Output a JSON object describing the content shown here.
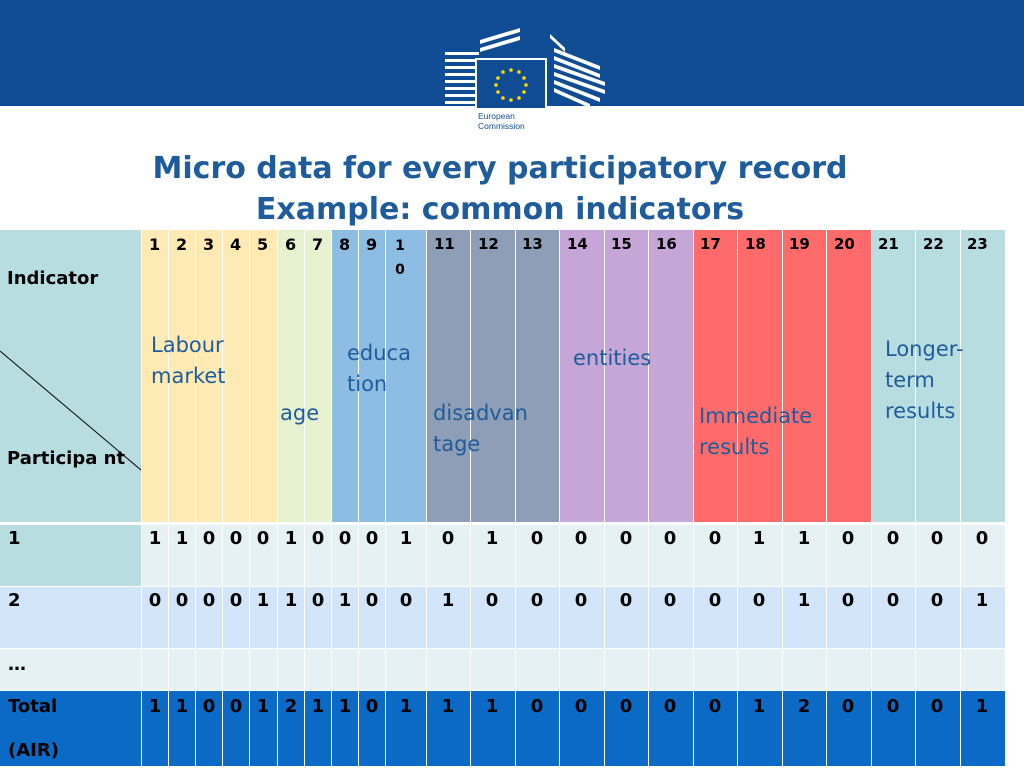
{
  "header": {
    "logo_text_line1": "European",
    "logo_text_line2": "Commission"
  },
  "title": {
    "line1": "Micro data for every participatory record",
    "line2": "Example: common indicators"
  },
  "table": {
    "corner_top_label": "Indicator",
    "corner_bottom_label": "Participa nt",
    "indicator_numbers": [
      "1",
      "2",
      "3",
      "4",
      "5",
      "6",
      "7",
      "8",
      "9",
      "1 0",
      "11",
      "12",
      "13",
      "14",
      "15",
      "16",
      "17",
      "18",
      "19",
      "20",
      "21",
      "22",
      "23"
    ],
    "groups": [
      {
        "label": "Labour market",
        "color": "#ffeab4"
      },
      {
        "label": "age",
        "color": "#e6f1cf"
      },
      {
        "label": "educa tion",
        "color": "#8ebde3"
      },
      {
        "label": "disadvan tage",
        "color": "#8e9eb7"
      },
      {
        "label": "entities",
        "color": "#c6a6d6"
      },
      {
        "label": "Immediate results",
        "color": "#ff6a6a"
      },
      {
        "label": "Longer- term results",
        "color": "#b8dde1"
      }
    ],
    "rows": [
      {
        "label": "1",
        "values": [
          "1",
          "1",
          "0",
          "0",
          "0",
          "1",
          "0",
          "0",
          "0",
          "1",
          "0",
          "1",
          "0",
          "0",
          "0",
          "0",
          "0",
          "1",
          "1",
          "0",
          "0",
          "0",
          "0"
        ]
      },
      {
        "label": "2",
        "values": [
          "0",
          "0",
          "0",
          "0",
          "1",
          "1",
          "0",
          "1",
          "0",
          "0",
          "1",
          "0",
          "0",
          "0",
          "0",
          "0",
          "0",
          "0",
          "1",
          "0",
          "0",
          "0",
          "1"
        ]
      },
      {
        "label": "…",
        "values": [
          "",
          "",
          "",
          "",
          "",
          "",
          "",
          "",
          "",
          "",
          "",
          "",
          "",
          "",
          "",
          "",
          "",
          "",
          "",
          "",
          "",
          "",
          ""
        ]
      },
      {
        "label_line1": "Total",
        "label_line2": "(AIR)",
        "values": [
          "1",
          "1",
          "0",
          "0",
          "1",
          "2",
          "1",
          "1",
          "0",
          "1",
          "1",
          "1",
          "0",
          "0",
          "0",
          "0",
          "0",
          "1",
          "2",
          "0",
          "0",
          "0",
          "1"
        ]
      }
    ],
    "colors": {
      "corner_bg": "#b8dde1",
      "row_light": "#e6f1f3",
      "row_blue": "#d3e6f9",
      "total_bg": "#0a6ac6"
    }
  }
}
